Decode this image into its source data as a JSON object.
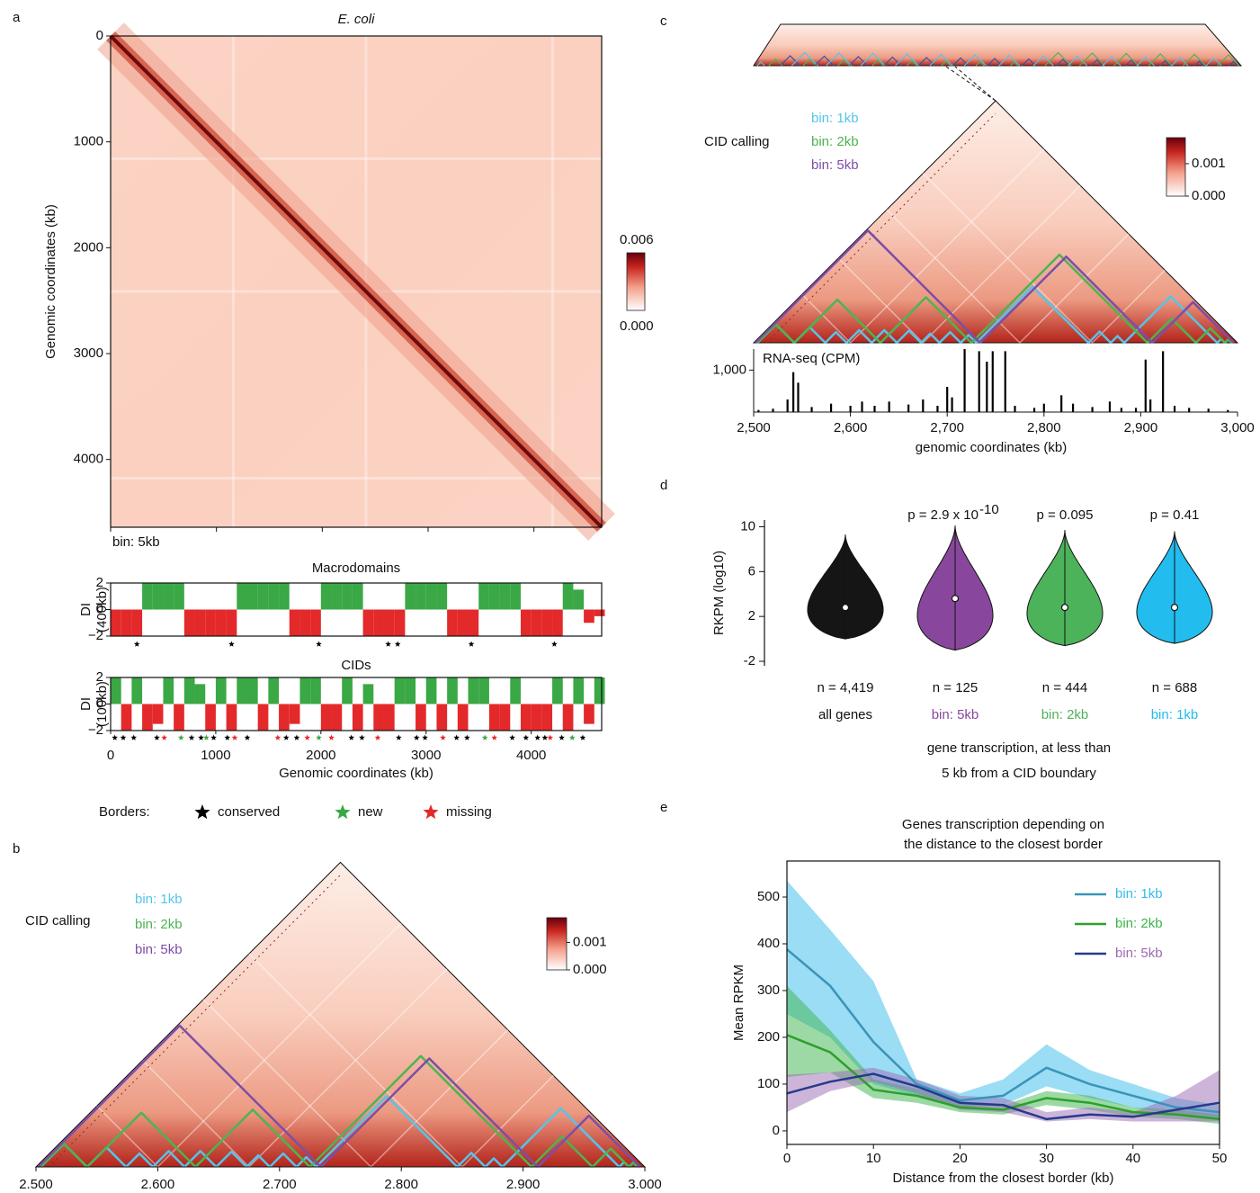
{
  "chart_data": [
    {
      "type": "heatmap",
      "panel": "a",
      "title": "E. coli",
      "ylabel": "Genomic coordinates (kb)",
      "annotation": "bin: 5kb",
      "xlim": [
        0,
        4640
      ],
      "ylim": [
        0,
        4640
      ],
      "xticks": [
        0,
        1000,
        2000,
        3000,
        4000
      ],
      "yticks": [
        0,
        1000,
        2000,
        3000,
        4000
      ],
      "colorbar": {
        "lim": [
          0,
          0.006
        ],
        "ticks": [
          {
            "value": 0,
            "label": "0.000"
          },
          {
            "value": 0.006,
            "label": "0.006"
          }
        ]
      }
    },
    {
      "type": "di",
      "title": "Macrodomains",
      "ylabel": [
        "DI",
        "(400kb)"
      ],
      "xlim": [
        0,
        4670
      ],
      "ylim": [
        -2,
        2
      ],
      "yticks": [
        {
          "value": -2,
          "label": "−2"
        },
        0,
        2
      ],
      "pos_color": "#3aa845",
      "neg_color": "#e3292a",
      "x": [
        0,
        100,
        200,
        300,
        400,
        500,
        600,
        700,
        800,
        900,
        1000,
        1100,
        1200,
        1300,
        1400,
        1500,
        1600,
        1700,
        1800,
        1900,
        2000,
        2100,
        2200,
        2300,
        2400,
        2500,
        2600,
        2700,
        2800,
        2900,
        3000,
        3100,
        3200,
        3300,
        3400,
        3500,
        3600,
        3700,
        3800,
        3900,
        4000,
        4100,
        4200,
        4300,
        4400,
        4500,
        4600
      ],
      "values": [
        -2,
        -2,
        -2,
        2,
        2,
        2,
        2,
        -2,
        -2,
        -2,
        -2,
        -2,
        2,
        2,
        2,
        2,
        2,
        -2,
        -2,
        -2,
        2,
        2,
        2,
        2,
        -2,
        -2,
        -2,
        -2,
        2,
        2,
        2,
        2,
        -2,
        -2,
        -2,
        2,
        2,
        2,
        2,
        -2,
        -2,
        -2,
        -2,
        2,
        1.5,
        -1,
        -0.5
      ],
      "borders": [
        {
          "color": "#000000",
          "x": [
            250,
            1150,
            1980,
            2640,
            2730,
            3430,
            4220
          ]
        }
      ]
    },
    {
      "type": "di",
      "title": "CIDs",
      "ylabel": [
        "DI",
        "(100kb)"
      ],
      "xlim": [
        0,
        4670
      ],
      "ylim": [
        -2,
        2
      ],
      "yticks": [
        {
          "value": -2,
          "label": "−2"
        },
        0,
        2
      ],
      "pos_color": "#3aa845",
      "neg_color": "#e3292a",
      "x": [
        0,
        100,
        200,
        300,
        400,
        500,
        600,
        700,
        800,
        900,
        1000,
        1100,
        1200,
        1300,
        1400,
        1500,
        1600,
        1700,
        1800,
        1900,
        2000,
        2100,
        2200,
        2300,
        2400,
        2500,
        2600,
        2700,
        2800,
        2900,
        3000,
        3100,
        3200,
        3300,
        3400,
        3500,
        3600,
        3700,
        3800,
        3900,
        4000,
        4100,
        4200,
        4300,
        4400,
        4500,
        4600
      ],
      "values": [
        2,
        -2,
        2,
        -2,
        -1.5,
        2,
        -2,
        2,
        1.5,
        -2,
        2,
        -2,
        2,
        2,
        -2,
        2,
        -2,
        -1.5,
        2,
        2,
        -2,
        -2,
        2,
        -2,
        1.5,
        -2,
        -2,
        2,
        2,
        -2,
        2,
        -2,
        2,
        -2,
        2,
        2,
        -2,
        -2,
        2,
        -2,
        -2,
        -2,
        2,
        -2,
        2,
        -1.5,
        2
      ],
      "xticks": [
        0,
        1000,
        2000,
        3000,
        4000
      ],
      "xlabel": "Genomic coordinates (kb)",
      "legend_title": "Borders:",
      "borders": [
        {
          "name": "conserved",
          "color": "#000000",
          "x": [
            40,
            120,
            220,
            440,
            770,
            860,
            980,
            1110,
            1300,
            1670,
            1770,
            2290,
            2390,
            2740,
            2910,
            2990,
            3290,
            3390,
            3820,
            3950,
            4060,
            4130,
            4290,
            4490
          ]
        },
        {
          "name": "new",
          "color": "#3aa845",
          "x": [
            670,
            910,
            1980,
            3560,
            4390
          ]
        },
        {
          "name": "missing",
          "color": "#e3292a",
          "x": [
            510,
            1180,
            1590,
            1870,
            2100,
            2540,
            3160,
            3650,
            4180
          ]
        }
      ]
    },
    {
      "type": "triangle",
      "panel": "b",
      "legend_title": "CID calling",
      "xlim": [
        2500,
        3000
      ],
      "xticks": [
        {
          "value": 2500,
          "label": "2.500"
        },
        {
          "value": 2600,
          "label": "2.600"
        },
        {
          "value": 2700,
          "label": "2.700"
        },
        {
          "value": 2800,
          "label": "2.800"
        },
        {
          "value": 2900,
          "label": "2.900"
        },
        {
          "value": 3000,
          "label": "3.000"
        }
      ],
      "colorbar": {
        "lim": [
          0,
          0.0019
        ],
        "ticks": [
          {
            "value": 0,
            "label": "0.000"
          },
          {
            "value": 0.001,
            "label": "0.001"
          }
        ]
      },
      "domains": [
        {
          "name": "bin: 1kb",
          "color": "#55c4ea",
          "boundaries": [
            2504,
            2542,
            2574,
            2596,
            2622,
            2648,
            2673,
            2692,
            2714,
            2730,
            2846,
            2869,
            2883,
            2979,
            2987,
            2994
          ]
        },
        {
          "name": "bin: 2kb",
          "color": "#4cb451",
          "boundaries": [
            2504,
            2542,
            2631,
            2725,
            2907,
            2957,
            2987,
            2994
          ]
        },
        {
          "name": "bin: 5kb",
          "color": "#7d4ea6",
          "boundaries": [
            2502,
            2734,
            2912,
            2996
          ]
        }
      ]
    },
    {
      "type": "triangle",
      "panel": "c",
      "legend_title": "CID calling",
      "xlim": [
        2500,
        3000
      ],
      "xticks": [
        {
          "value": 2500,
          "label": "2,500"
        },
        {
          "value": 2600,
          "label": "2,600"
        },
        {
          "value": 2700,
          "label": "2,700"
        },
        {
          "value": 2800,
          "label": "2,800"
        },
        {
          "value": 2900,
          "label": "2,900"
        },
        {
          "value": 3000,
          "label": "3,000"
        }
      ],
      "xlabel": "genomic coordinates (kb)",
      "colorbar": {
        "lim": [
          0,
          0.0018
        ],
        "ticks": [
          {
            "value": 0,
            "label": "0.000"
          },
          {
            "value": 0.001,
            "label": "0.001"
          }
        ]
      },
      "domains": [
        {
          "name": "bin: 1kb",
          "color": "#55c4ea",
          "boundaries": [
            2504,
            2542,
            2574,
            2596,
            2622,
            2648,
            2673,
            2692,
            2714,
            2730,
            2846,
            2869,
            2883,
            2979,
            2987,
            2994
          ]
        },
        {
          "name": "bin: 2kb",
          "color": "#4cb451",
          "boundaries": [
            2504,
            2542,
            2631,
            2725,
            2907,
            2957,
            2987,
            2994
          ]
        },
        {
          "name": "bin: 5kb",
          "color": "#7d4ea6",
          "boundaries": [
            2502,
            2734,
            2912,
            2996
          ]
        }
      ],
      "track": {
        "label": "RNA-seq (CPM)",
        "color": "#000000",
        "ylim": [
          0,
          1500
        ],
        "yticks": [
          {
            "value": 1000,
            "label": "1,000"
          }
        ],
        "x": [
          2505,
          2520,
          2535,
          2541,
          2546,
          2560,
          2580,
          2600,
          2612,
          2625,
          2640,
          2660,
          2675,
          2690,
          2700,
          2705,
          2718,
          2733,
          2741,
          2747,
          2760,
          2770,
          2790,
          2800,
          2818,
          2830,
          2850,
          2868,
          2880,
          2895,
          2905,
          2910,
          2923,
          2935,
          2950,
          2970,
          2990
        ],
        "values": [
          50,
          80,
          300,
          950,
          700,
          120,
          200,
          150,
          250,
          150,
          250,
          180,
          300,
          150,
          600,
          350,
          1500,
          1450,
          1200,
          1450,
          1450,
          150,
          100,
          200,
          400,
          200,
          120,
          250,
          100,
          100,
          1250,
          300,
          1450,
          150,
          100,
          80,
          50
        ]
      }
    },
    {
      "type": "violin",
      "panel": "d",
      "ylabel": "RKPM (log10)",
      "ylim": [
        -2.4,
        10.6
      ],
      "yticks": [
        -2,
        2,
        6,
        10
      ],
      "categories": [
        "all genes",
        "bin: 5kb",
        "bin: 2kb",
        "bin: 1kb"
      ],
      "colors": [
        "#151515",
        "#88479c",
        "#4db35a",
        "#22bdee"
      ],
      "medians": [
        2.8,
        3.6,
        2.8,
        2.8
      ],
      "min": [
        0,
        -1,
        -0.6,
        -0.4
      ],
      "max": [
        9.3,
        10.1,
        9.7,
        9.6
      ],
      "n_labels": [
        "n = 4,419",
        "n = 125",
        "n = 444",
        "n = 688"
      ],
      "p_labels": [
        {
          "text": "p = 2.9 x 10",
          "sup": "-10"
        },
        {
          "text": "p = 0.095"
        },
        {
          "text": "p = 0.41"
        }
      ],
      "xlabel": [
        "gene transcription, at less than",
        "5 kb from a CID boundary"
      ]
    },
    {
      "type": "line",
      "panel": "e",
      "title": [
        "Genes transcription depending on",
        "the distance to the closest border"
      ],
      "xlabel": "Distance from the closest border (kb)",
      "ylabel": "Mean RPKM",
      "xlim": [
        0,
        50
      ],
      "ylim": [
        -29,
        577
      ],
      "xticks": [
        0,
        10,
        20,
        30,
        40,
        50
      ],
      "yticks": [
        0,
        100,
        200,
        300,
        400,
        500
      ],
      "legend": "upper right",
      "x": [
        0,
        5,
        10,
        15,
        20,
        25,
        30,
        35,
        40,
        45,
        50
      ],
      "series": [
        {
          "name": "bin: 1kb",
          "color": "#3a94b8",
          "band_color": "#35bbe9",
          "values": [
            388,
            310,
            190,
            100,
            65,
            75,
            135,
            100,
            75,
            50,
            40
          ],
          "lower": [
            250,
            200,
            100,
            75,
            50,
            55,
            95,
            70,
            50,
            35,
            25
          ],
          "upper": [
            535,
            430,
            320,
            110,
            80,
            110,
            185,
            130,
            100,
            70,
            55
          ]
        },
        {
          "name": "bin: 2kb",
          "color": "#2ca02c",
          "band_color": "#3cb34a",
          "values": [
            205,
            168,
            88,
            75,
            50,
            45,
            70,
            60,
            40,
            35,
            25
          ],
          "lower": [
            115,
            125,
            70,
            60,
            40,
            35,
            55,
            45,
            30,
            25,
            15
          ],
          "upper": [
            310,
            215,
            110,
            90,
            60,
            55,
            85,
            75,
            50,
            45,
            35
          ]
        },
        {
          "name": "bin: 5kb",
          "color": "#263a8c",
          "band_color": "#9b6bb5",
          "values": [
            80,
            105,
            122,
            95,
            60,
            55,
            25,
            35,
            30,
            45,
            60
          ],
          "lower": [
            40,
            85,
            105,
            80,
            45,
            40,
            20,
            25,
            20,
            20,
            20
          ],
          "upper": [
            120,
            125,
            135,
            110,
            75,
            70,
            40,
            50,
            40,
            75,
            130
          ]
        }
      ]
    }
  ]
}
